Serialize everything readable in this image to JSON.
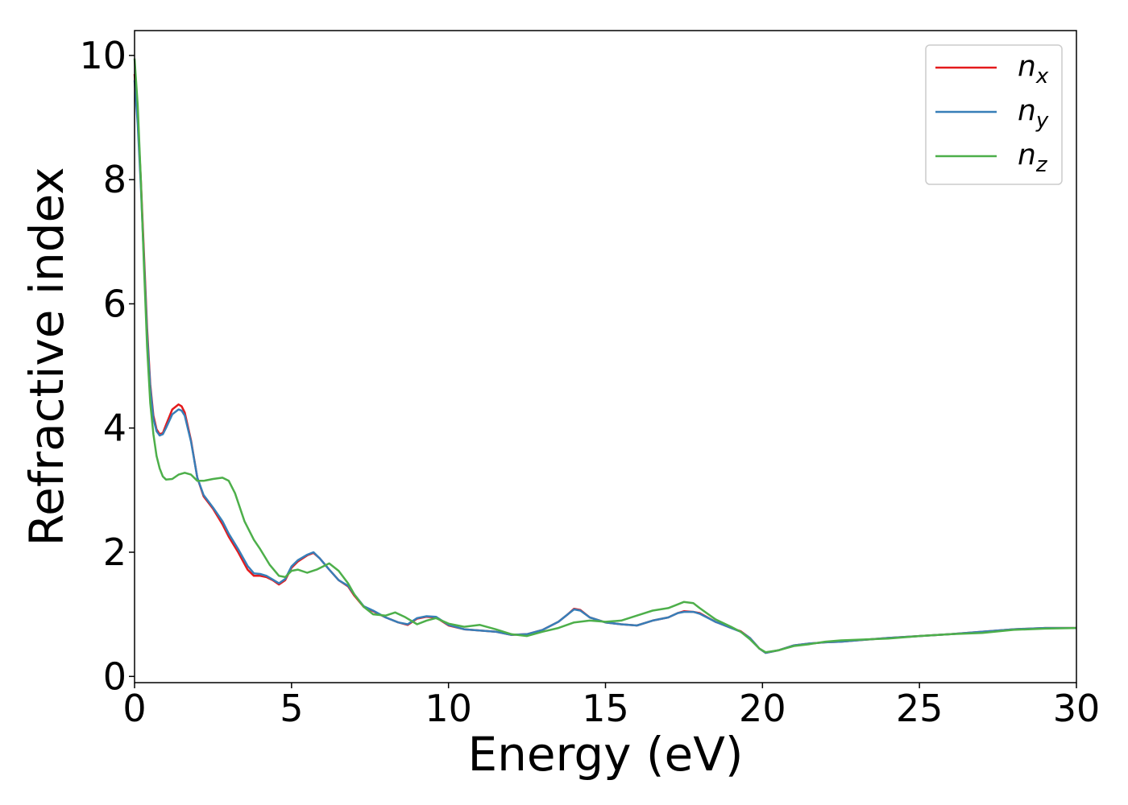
{
  "chart_data": {
    "type": "line",
    "title": "",
    "xlabel": "Energy (eV)",
    "ylabel": "Refractive index",
    "xlim": [
      0,
      30
    ],
    "ylim": [
      -0.1,
      10.4
    ],
    "xticks": [
      0,
      5,
      10,
      15,
      20,
      25,
      30
    ],
    "yticks": [
      0,
      2,
      4,
      6,
      8,
      10
    ],
    "grid": false,
    "legend_position": "top-right",
    "series": [
      {
        "name_base": "n",
        "name_sub": "x",
        "color": "#e41a1c",
        "x": [
          0,
          0.1,
          0.2,
          0.3,
          0.4,
          0.5,
          0.6,
          0.7,
          0.8,
          0.9,
          1.0,
          1.2,
          1.4,
          1.5,
          1.6,
          1.8,
          2.0,
          2.2,
          2.5,
          2.8,
          3.0,
          3.3,
          3.6,
          3.8,
          4.0,
          4.2,
          4.4,
          4.6,
          4.8,
          5.0,
          5.2,
          5.5,
          5.7,
          5.9,
          6.2,
          6.5,
          6.8,
          7.0,
          7.3,
          7.6,
          8.0,
          8.4,
          8.7,
          9.0,
          9.3,
          9.6,
          10.0,
          10.5,
          11.0,
          11.5,
          12.0,
          12.5,
          13.0,
          13.5,
          13.8,
          14.0,
          14.2,
          14.5,
          15.0,
          15.5,
          16.0,
          16.5,
          17.0,
          17.3,
          17.5,
          17.8,
          18.0,
          18.5,
          19.0,
          19.3,
          19.6,
          19.9,
          20.1,
          20.5,
          21.0,
          21.5,
          22.0,
          22.5,
          23.0,
          24.0,
          25.0,
          26.0,
          27.0,
          28.0,
          29.0,
          30.0
        ],
        "values": [
          9.7,
          9.0,
          8.0,
          6.8,
          5.6,
          4.7,
          4.2,
          3.98,
          3.9,
          3.92,
          4.05,
          4.3,
          4.38,
          4.35,
          4.25,
          3.8,
          3.2,
          2.9,
          2.7,
          2.45,
          2.25,
          2.0,
          1.72,
          1.62,
          1.62,
          1.6,
          1.55,
          1.48,
          1.55,
          1.75,
          1.85,
          1.95,
          1.99,
          1.9,
          1.72,
          1.55,
          1.45,
          1.3,
          1.12,
          1.05,
          0.95,
          0.87,
          0.83,
          0.93,
          0.96,
          0.95,
          0.82,
          0.76,
          0.74,
          0.72,
          0.67,
          0.68,
          0.75,
          0.88,
          1.0,
          1.09,
          1.07,
          0.95,
          0.87,
          0.84,
          0.82,
          0.9,
          0.95,
          1.02,
          1.05,
          1.04,
          1.02,
          0.88,
          0.78,
          0.73,
          0.62,
          0.45,
          0.38,
          0.42,
          0.5,
          0.53,
          0.55,
          0.56,
          0.58,
          0.62,
          0.65,
          0.68,
          0.72,
          0.76,
          0.78,
          0.78
        ]
      },
      {
        "name_base": "n",
        "name_sub": "y",
        "color": "#377eb8",
        "x": [
          0,
          0.1,
          0.2,
          0.3,
          0.4,
          0.5,
          0.6,
          0.7,
          0.8,
          0.9,
          1.0,
          1.2,
          1.4,
          1.5,
          1.6,
          1.8,
          2.0,
          2.2,
          2.5,
          2.8,
          3.0,
          3.3,
          3.6,
          3.8,
          4.0,
          4.2,
          4.4,
          4.6,
          4.8,
          5.0,
          5.2,
          5.5,
          5.7,
          5.9,
          6.2,
          6.5,
          6.8,
          7.0,
          7.3,
          7.6,
          8.0,
          8.4,
          8.7,
          9.0,
          9.3,
          9.6,
          10.0,
          10.5,
          11.0,
          11.5,
          12.0,
          12.5,
          13.0,
          13.5,
          13.8,
          14.0,
          14.2,
          14.5,
          15.0,
          15.5,
          16.0,
          16.5,
          17.0,
          17.3,
          17.5,
          17.8,
          18.0,
          18.5,
          19.0,
          19.3,
          19.6,
          19.9,
          20.1,
          20.5,
          21.0,
          21.5,
          22.0,
          22.5,
          23.0,
          24.0,
          25.0,
          26.0,
          27.0,
          28.0,
          29.0,
          30.0
        ],
        "values": [
          9.6,
          8.9,
          7.9,
          6.7,
          5.5,
          4.65,
          4.15,
          3.95,
          3.88,
          3.9,
          4.0,
          4.22,
          4.3,
          4.28,
          4.2,
          3.78,
          3.2,
          2.92,
          2.72,
          2.5,
          2.3,
          2.05,
          1.78,
          1.66,
          1.65,
          1.62,
          1.56,
          1.5,
          1.57,
          1.77,
          1.87,
          1.96,
          2.0,
          1.9,
          1.72,
          1.55,
          1.46,
          1.32,
          1.13,
          1.06,
          0.95,
          0.87,
          0.84,
          0.94,
          0.97,
          0.96,
          0.83,
          0.76,
          0.74,
          0.72,
          0.67,
          0.68,
          0.75,
          0.88,
          1.0,
          1.08,
          1.06,
          0.95,
          0.87,
          0.84,
          0.82,
          0.9,
          0.95,
          1.02,
          1.04,
          1.04,
          1.01,
          0.88,
          0.78,
          0.72,
          0.62,
          0.45,
          0.38,
          0.42,
          0.5,
          0.53,
          0.55,
          0.56,
          0.58,
          0.62,
          0.65,
          0.68,
          0.72,
          0.76,
          0.78,
          0.78
        ]
      },
      {
        "name_base": "n",
        "name_sub": "z",
        "color": "#4daf4a",
        "x": [
          0,
          0.1,
          0.2,
          0.3,
          0.4,
          0.5,
          0.6,
          0.7,
          0.8,
          0.9,
          1.0,
          1.2,
          1.4,
          1.6,
          1.8,
          2.0,
          2.2,
          2.5,
          2.8,
          3.0,
          3.2,
          3.5,
          3.8,
          4.0,
          4.3,
          4.6,
          4.8,
          5.0,
          5.2,
          5.5,
          5.8,
          6.2,
          6.5,
          6.8,
          7.0,
          7.3,
          7.6,
          8.0,
          8.3,
          8.6,
          9.0,
          9.3,
          9.6,
          10.0,
          10.5,
          11.0,
          11.5,
          12.0,
          12.5,
          13.0,
          13.5,
          14.0,
          14.5,
          15.0,
          15.5,
          16.0,
          16.5,
          17.0,
          17.3,
          17.5,
          17.8,
          18.0,
          18.5,
          19.0,
          19.3,
          19.6,
          19.9,
          20.1,
          20.5,
          21.0,
          21.5,
          22.0,
          22.5,
          23.0,
          24.0,
          25.0,
          26.0,
          27.0,
          28.0,
          29.0,
          30.0
        ],
        "values": [
          9.95,
          9.2,
          8.0,
          6.6,
          5.3,
          4.4,
          3.9,
          3.55,
          3.35,
          3.22,
          3.17,
          3.18,
          3.25,
          3.28,
          3.25,
          3.15,
          3.15,
          3.18,
          3.2,
          3.15,
          2.95,
          2.5,
          2.2,
          2.05,
          1.8,
          1.62,
          1.6,
          1.7,
          1.72,
          1.67,
          1.72,
          1.82,
          1.7,
          1.5,
          1.32,
          1.12,
          1.0,
          0.98,
          1.03,
          0.96,
          0.84,
          0.9,
          0.94,
          0.85,
          0.8,
          0.83,
          0.76,
          0.68,
          0.65,
          0.72,
          0.78,
          0.87,
          0.9,
          0.88,
          0.9,
          0.98,
          1.06,
          1.1,
          1.16,
          1.2,
          1.18,
          1.1,
          0.92,
          0.8,
          0.72,
          0.6,
          0.45,
          0.39,
          0.42,
          0.49,
          0.52,
          0.56,
          0.58,
          0.59,
          0.61,
          0.65,
          0.68,
          0.7,
          0.75,
          0.77,
          0.78
        ]
      }
    ]
  }
}
